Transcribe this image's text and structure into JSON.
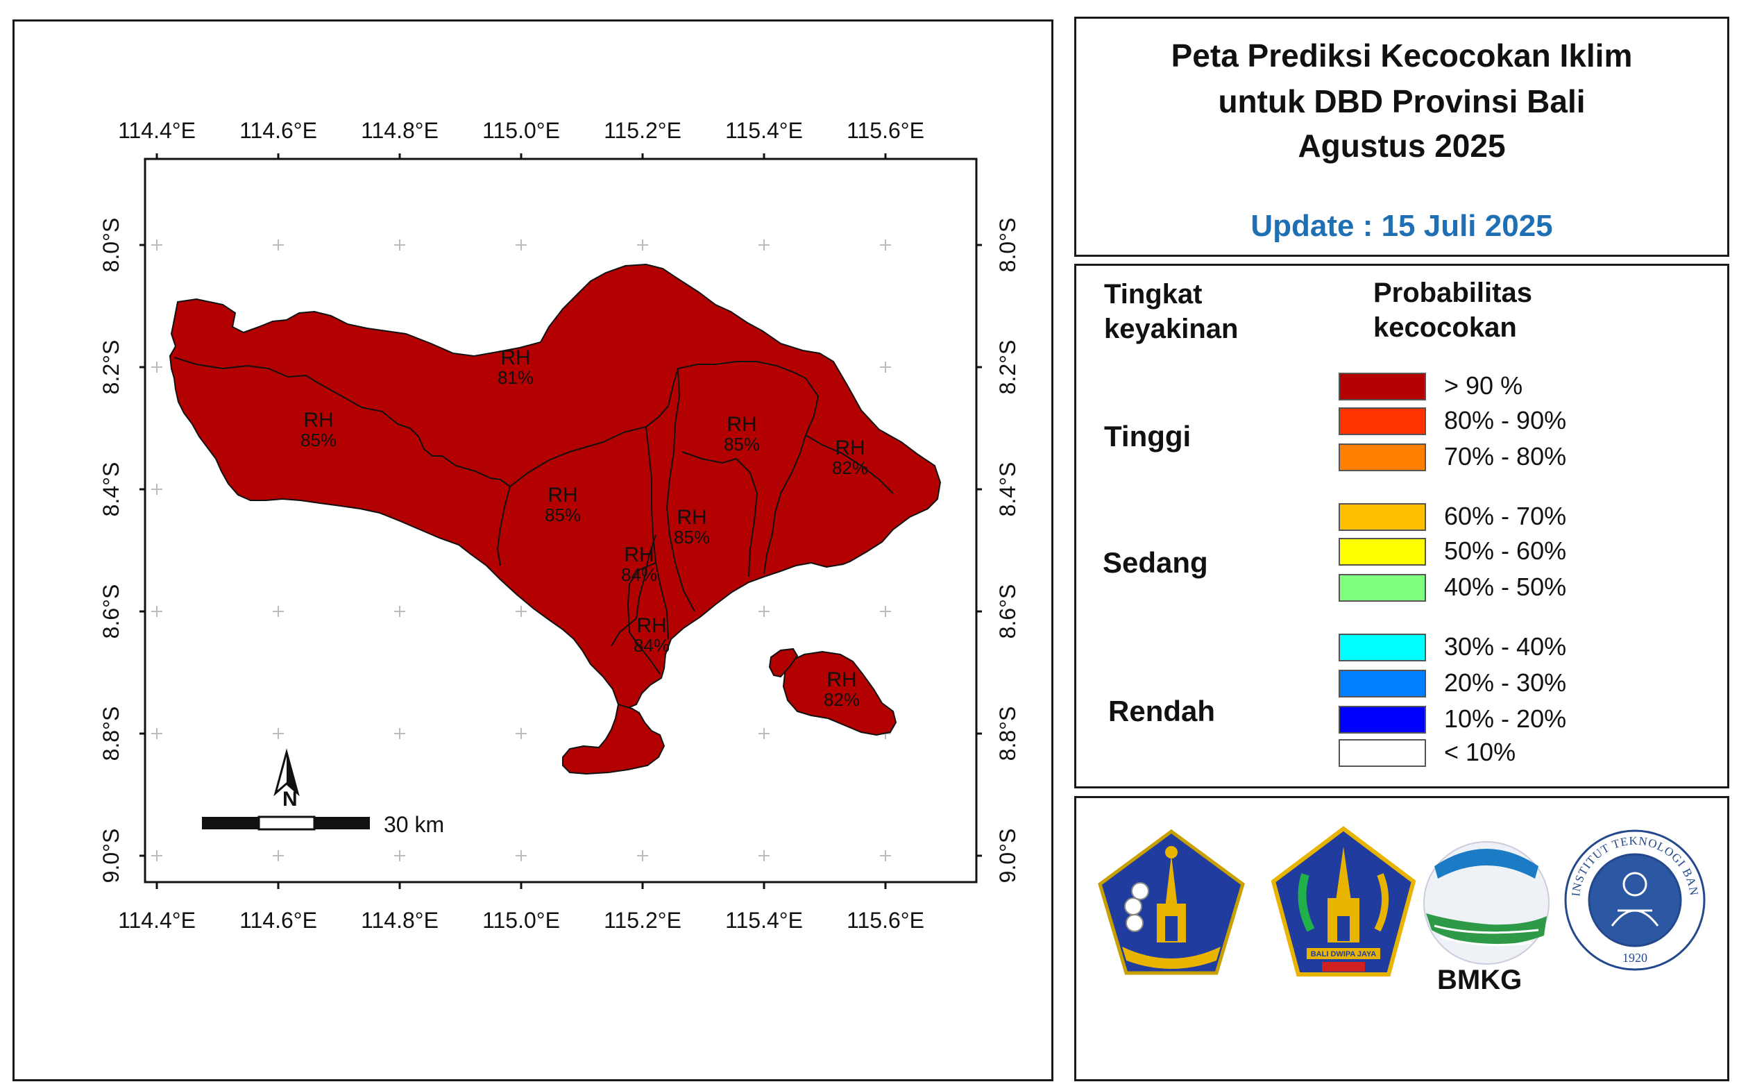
{
  "title": {
    "line1": "Peta Prediksi Kecocokan Iklim",
    "line2": "untuk DBD Provinsi Bali",
    "line3": "Agustus 2025",
    "update": "Update : 15 Juli 2025"
  },
  "map": {
    "lon_ticks": [
      "114.4°E",
      "114.6°E",
      "114.8°E",
      "115.0°E",
      "115.2°E",
      "115.4°E",
      "115.6°E"
    ],
    "lat_ticks": [
      "8.0°S",
      "8.2°S",
      "8.4°S",
      "8.6°S",
      "8.8°S",
      "9.0°S"
    ],
    "fill_color": "#b30000",
    "regions": [
      {
        "category": "RH",
        "value": "81%"
      },
      {
        "category": "RH",
        "value": "85%"
      },
      {
        "category": "RH",
        "value": "85%"
      },
      {
        "category": "RH",
        "value": "85%"
      },
      {
        "category": "RH",
        "value": "82%"
      },
      {
        "category": "RH",
        "value": "85%"
      },
      {
        "category": "RH",
        "value": "84%"
      },
      {
        "category": "RH",
        "value": "84%"
      },
      {
        "category": "RH",
        "value": "82%"
      }
    ],
    "north_label": "N",
    "scale_label": "30 km"
  },
  "legend": {
    "header_left_line1": "Tingkat",
    "header_left_line2": "keyakinan",
    "header_right_line1": "Probabilitas",
    "header_right_line2": "kecocokan",
    "levels": [
      "Tinggi",
      "Sedang",
      "Rendah"
    ],
    "items": [
      {
        "label": "> 90 %",
        "color": "#b30000"
      },
      {
        "label": "80% - 90%",
        "color": "#ff3300"
      },
      {
        "label": "70% - 80%",
        "color": "#ff7f00"
      },
      {
        "label": "60% - 70%",
        "color": "#ffbf00"
      },
      {
        "label": "50% - 60%",
        "color": "#ffff00"
      },
      {
        "label": "40% - 50%",
        "color": "#80ff80"
      },
      {
        "label": "30% - 40%",
        "color": "#00ffff"
      },
      {
        "label": "20% - 30%",
        "color": "#0080ff"
      },
      {
        "label": "10% - 20%",
        "color": "#0000ff"
      },
      {
        "label": "< 10%",
        "color": "#ffffff"
      }
    ]
  },
  "logos": {
    "bmkg_label": "BMKG",
    "itb_text": "INSTITUT TEKNOLOGI BANDUNG",
    "itb_year": "1920",
    "bali_motto": "BALI DWIPA JAYA"
  }
}
